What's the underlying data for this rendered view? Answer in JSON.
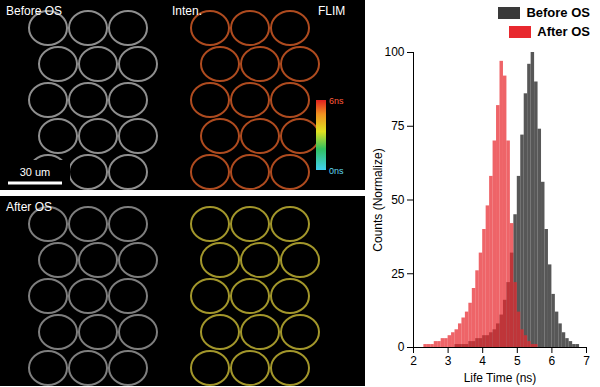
{
  "chart_data": {
    "type": "histogram",
    "x_label": "Life Time (ns)",
    "y_label": "Counts (Normalize)",
    "bins": [
      2,
      2.1,
      2.2,
      2.3,
      2.4,
      2.5,
      2.6,
      2.7,
      2.8,
      2.9,
      3,
      3.1,
      3.2,
      3.3,
      3.4,
      3.5,
      3.6,
      3.7,
      3.8,
      3.9,
      4,
      4.1,
      4.2,
      4.3,
      4.4,
      4.5,
      4.6,
      4.7,
      4.8,
      4.9,
      5,
      5.1,
      5.2,
      5.3,
      5.4,
      5.5,
      5.6,
      5.7,
      5.8,
      5.9,
      6,
      6.1,
      6.2,
      6.3,
      6.4,
      6.5,
      6.6,
      6.7,
      6.8,
      6.9,
      7
    ],
    "series": [
      {
        "name": "Before OS",
        "color": "#3a3a3a",
        "values": [
          0,
          0,
          0,
          0,
          0,
          0,
          0,
          0,
          0,
          0,
          0,
          0,
          1,
          1,
          1,
          1,
          2,
          2,
          3,
          3,
          4,
          4,
          5,
          6,
          8,
          11,
          16,
          22,
          32,
          45,
          58,
          72,
          86,
          96,
          100,
          90,
          74,
          56,
          40,
          28,
          18,
          12,
          8,
          5,
          3,
          2,
          1,
          1,
          0,
          0
        ]
      },
      {
        "name": "After OS",
        "color": "#e8282e",
        "values": [
          0,
          0,
          0,
          1,
          1,
          1,
          2,
          2,
          3,
          3,
          4,
          5,
          6,
          8,
          10,
          12,
          15,
          20,
          26,
          32,
          40,
          48,
          58,
          70,
          82,
          97,
          92,
          70,
          42,
          22,
          12,
          6,
          4,
          2,
          1,
          1,
          0,
          0,
          0,
          0,
          0,
          0,
          0,
          0,
          0,
          0,
          0,
          0,
          0,
          0
        ]
      }
    ],
    "xlim": [
      2,
      7
    ],
    "xticks": [
      2,
      3,
      4,
      5,
      6,
      7
    ],
    "ylim": [
      0,
      100
    ],
    "yticks": [
      0,
      25,
      50,
      75,
      100
    ],
    "legend": "top-right"
  },
  "image_panels": {
    "panels": [
      {
        "title": "Before OS",
        "channel_labels": [
          "Inten.",
          "FLIM"
        ]
      },
      {
        "title": "After OS",
        "channel_labels": []
      }
    ],
    "scale_bar": "30 um",
    "color_bar": {
      "range": [
        0,
        6
      ],
      "ticks": [
        {
          "value": 0,
          "label": "0ns"
        },
        {
          "value": 6,
          "label": "6ns"
        }
      ]
    }
  }
}
